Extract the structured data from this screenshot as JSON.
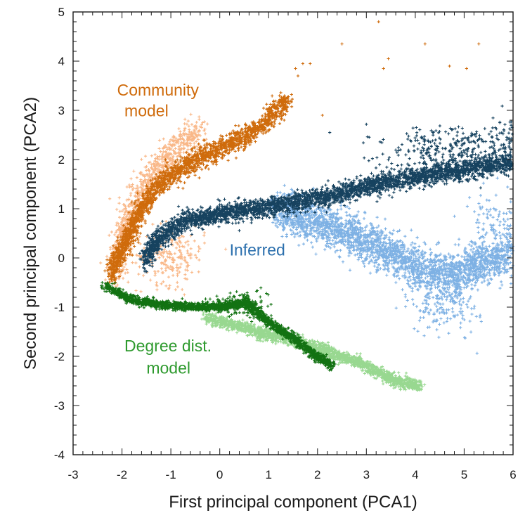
{
  "chart_data": {
    "type": "scatter",
    "title": "",
    "xlabel": "First principal component (PCA1)",
    "ylabel": "Second principal component (PCA2)",
    "xlim": [
      -3,
      6
    ],
    "ylim": [
      -4,
      5
    ],
    "xticks": [
      -3,
      -2,
      -1,
      0,
      1,
      2,
      3,
      4,
      5,
      6
    ],
    "yticks": [
      -4,
      -3,
      -2,
      -1,
      0,
      1,
      2,
      3,
      4,
      5
    ],
    "grid": false,
    "marker": "plus",
    "series": [
      {
        "name": "Community model (light)",
        "color": "#f9b787",
        "spine": [
          [
            -2.15,
            -0.3
          ],
          [
            -1.9,
            0.7
          ],
          [
            -1.5,
            1.5
          ],
          [
            -1.1,
            2.05
          ],
          [
            -0.7,
            2.35
          ],
          [
            -0.4,
            2.6
          ]
        ],
        "spread": [
          0.22,
          0.32
        ],
        "count": 900,
        "extra": [
          {
            "center": [
              -1.0,
              0.05
            ],
            "sd": [
              0.35,
              0.3
            ],
            "count": 200
          }
        ]
      },
      {
        "name": "Community model (dark)",
        "color": "#cf6b0b",
        "spine": [
          [
            -2.25,
            -0.4
          ],
          [
            -2.0,
            0.2
          ],
          [
            -1.6,
            1.0
          ],
          [
            -1.2,
            1.55
          ],
          [
            -0.6,
            1.95
          ],
          [
            0.2,
            2.3
          ],
          [
            0.8,
            2.65
          ],
          [
            1.4,
            3.2
          ]
        ],
        "spread": [
          0.12,
          0.22
        ],
        "count": 2000,
        "outliers": [
          [
            1.7,
            3.95
          ],
          [
            1.85,
            3.95
          ],
          [
            2.1,
            2.9
          ],
          [
            2.5,
            4.35
          ],
          [
            3.25,
            4.8
          ],
          [
            3.45,
            4.05
          ],
          [
            3.35,
            3.85
          ],
          [
            4.2,
            4.35
          ],
          [
            4.7,
            3.9
          ],
          [
            5.05,
            3.85
          ],
          [
            5.3,
            4.35
          ],
          [
            1.55,
            3.85
          ],
          [
            1.6,
            3.7
          ]
        ]
      },
      {
        "name": "Inferred (light)",
        "color": "#7eb1e4",
        "spine": [
          [
            1.2,
            0.95
          ],
          [
            2.0,
            0.75
          ],
          [
            2.8,
            0.45
          ],
          [
            3.5,
            0.1
          ],
          [
            4.2,
            -0.25
          ],
          [
            4.8,
            -0.35
          ],
          [
            5.4,
            -0.1
          ],
          [
            6.0,
            0.1
          ]
        ],
        "spread": [
          0.25,
          0.42
        ],
        "count": 2600,
        "extra": [
          {
            "center": [
              4.6,
              -0.85
            ],
            "sd": [
              0.35,
              0.35
            ],
            "count": 200
          },
          {
            "center": [
              5.6,
              0.7
            ],
            "sd": [
              0.3,
              0.4
            ],
            "count": 100
          }
        ]
      },
      {
        "name": "Inferred (dark)",
        "color": "#16425f",
        "spine": [
          [
            -1.55,
            -0.05
          ],
          [
            -1.2,
            0.45
          ],
          [
            -0.7,
            0.75
          ],
          [
            0.0,
            0.9
          ],
          [
            0.7,
            1.0
          ],
          [
            1.4,
            1.1
          ],
          [
            2.2,
            1.25
          ],
          [
            3.0,
            1.45
          ],
          [
            3.8,
            1.6
          ],
          [
            4.6,
            1.75
          ],
          [
            5.4,
            1.85
          ],
          [
            6.0,
            1.95
          ]
        ],
        "spread": [
          0.12,
          0.2
        ],
        "count": 3400,
        "extra": [
          {
            "center": [
              4.8,
              2.2
            ],
            "sd": [
              0.7,
              0.25
            ],
            "count": 300
          },
          {
            "center": [
              5.8,
              2.4
            ],
            "sd": [
              0.25,
              0.25
            ],
            "count": 60
          }
        ]
      },
      {
        "name": "Degree dist. model (light)",
        "color": "#98d890",
        "spine": [
          [
            -0.3,
            -1.2
          ],
          [
            0.6,
            -1.45
          ],
          [
            1.4,
            -1.65
          ],
          [
            2.2,
            -1.9
          ],
          [
            2.9,
            -2.15
          ],
          [
            3.6,
            -2.5
          ],
          [
            4.1,
            -2.6
          ]
        ],
        "spread": [
          0.1,
          0.12
        ],
        "count": 1900
      },
      {
        "name": "Degree dist. model (dark)",
        "color": "#127212",
        "spine": [
          [
            -2.35,
            -0.55
          ],
          [
            -1.8,
            -0.85
          ],
          [
            -1.2,
            -0.95
          ],
          [
            -0.5,
            -1.0
          ],
          [
            0.0,
            -1.0
          ],
          [
            0.35,
            -0.95
          ],
          [
            0.5,
            -0.9
          ],
          [
            1.0,
            -1.3
          ],
          [
            1.6,
            -1.7
          ],
          [
            2.0,
            -2.0
          ],
          [
            2.3,
            -2.2
          ]
        ],
        "spread": [
          0.1,
          0.08
        ],
        "count": 2100,
        "extra": [
          {
            "center": [
              0.4,
              -0.95
            ],
            "sd": [
              0.25,
              0.12
            ],
            "count": 150
          }
        ]
      }
    ],
    "annotations": [
      {
        "text": "Community",
        "x": -2.1,
        "y": 3.3,
        "color": "#cf6b0b"
      },
      {
        "text": "model",
        "x": -1.95,
        "y": 2.88,
        "color": "#cf6b0b"
      },
      {
        "text": "Inferred",
        "x": 0.2,
        "y": 0.05,
        "color": "#2b6fad"
      },
      {
        "text": "Degree dist.",
        "x": -1.95,
        "y": -1.9,
        "color": "#2e9a2e"
      },
      {
        "text": "model",
        "x": -1.5,
        "y": -2.35,
        "color": "#2e9a2e"
      }
    ]
  }
}
